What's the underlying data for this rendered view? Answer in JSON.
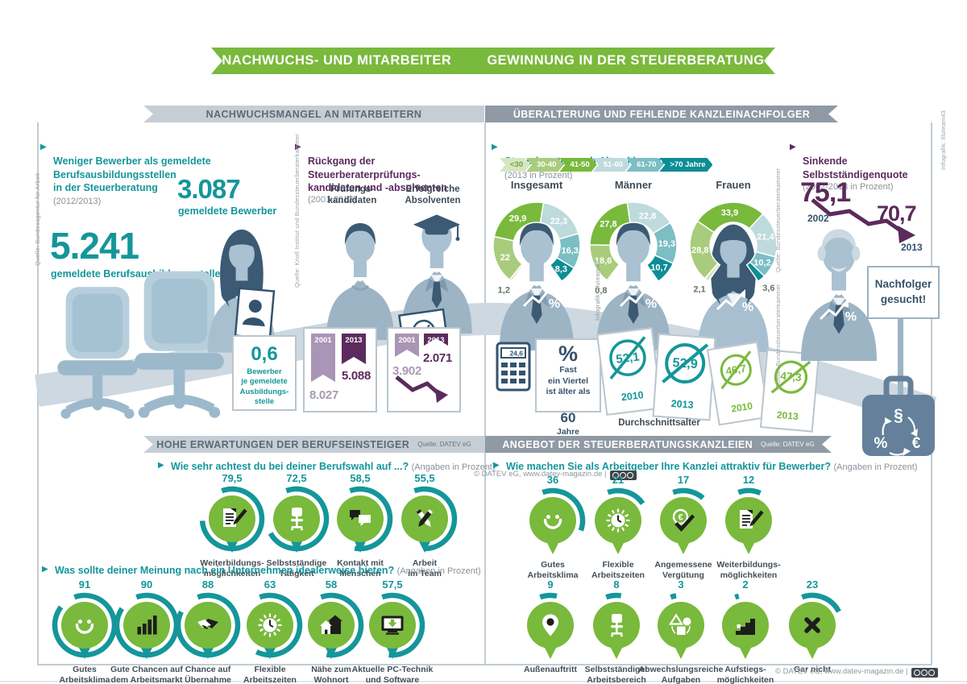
{
  "banner": {
    "left": "NACHWUCHS- UND MITARBEITER",
    "right": "GEWINNUNG IN DER STEUERBERATUNG"
  },
  "top_left": {
    "header": "NACHWUCHSMANGEL AN MITARBEITERN",
    "source": "Quelle: Bundesagentur für Arbeit",
    "title": "Weniger Bewerber als gemeldete Berufsausbildungsstellen\nin der Steuerberatung",
    "title_suffix": "(2012/2013)",
    "applicants_value": "3.087",
    "applicants_label": "gemeldete Bewerber",
    "positions_value": "5.241",
    "positions_label": "gemeldete Berufsausbildungsstellen",
    "ratio_value": "0,6",
    "ratio_label": "Bewerber\nje gemeldete\nAusbildungs-\nstelle",
    "decline_title": "Rückgang der Steuerberaterprüfungs-\nkandidaten und -absolventen",
    "decline_suffix": "(2001-2013)",
    "decline_source": "Quelle: Knoll Institut und Bundessteuerberaterkammer",
    "col1": "Prüfungs-\nkandidaten",
    "col2": "Erfolgreiche\nAbsolventen"
  },
  "top_right": {
    "header": "ÜBERALTERUNG UND FEHLENDE KANZLEINACHFOLGER",
    "age_title": "Steuerberater nach Altersklassen",
    "age_suffix": "(2013 in Prozent)",
    "sources": [
      "Quelle: Bundessteuerberaterkammer",
      "Quelle: Bundessteuerberaterkammer"
    ],
    "calculator_display": "24,6",
    "quarter_pct": "%",
    "quarter_text": "Fast\nein Viertel\nist älter als",
    "quarter_big": "60",
    "quarter_unit": "Jahre",
    "quote_title": "Sinkende Selbstständigenquote",
    "quote_suffix": "(2002-2013 in Prozent)",
    "sign_text": "Nachfolger\ngesucht!",
    "briefcase_symbols": [
      "§",
      "%",
      "€"
    ]
  },
  "bottom_left": {
    "header": "HOHE ERWARTUNGEN DER BERUFSEINSTEIGER",
    "header_source": "Quelle: DATEV eG",
    "q1": "Wie sehr achtest du bei deiner Berufswahl auf ...?",
    "q1_suffix": "(Angaben in Prozent)",
    "q2": "Was sollte deiner Meinung nach ein Unternehmen idealerweise bieten?",
    "q2_suffix": "(Angaben in Prozent)"
  },
  "bottom_right": {
    "header": "ANGEBOT DER STEUERBERATUNGSKANZLEIEN",
    "header_source": "Quelle: DATEV eG",
    "q": "Wie machen Sie als Arbeitgeber Ihre Kanzlei attraktiv für Bewerber?",
    "q_suffix": "(Angaben in Prozent)",
    "watermark": "© DATEV eG, www.datev-magazin.de |"
  },
  "credit": "Infografik: Illuteam43",
  "colors": {
    "green": "#79b93c",
    "teal": "#14969a",
    "purple": "#5b2b5d",
    "purple_light": "#a995b5",
    "navy": "#33536e"
  },
  "chart_data": [
    {
      "id": "pruefungskandidaten",
      "type": "bar",
      "title": "Prüfungskandidaten",
      "categories": [
        "2001",
        "2013"
      ],
      "values": [
        8027,
        5088
      ],
      "labels": [
        "8.027",
        "5.088"
      ]
    },
    {
      "id": "absolventen",
      "type": "bar",
      "title": "Erfolgreiche Absolventen",
      "categories": [
        "2001",
        "2013"
      ],
      "values": [
        3902,
        2071
      ],
      "labels": [
        "3.902",
        "2.071"
      ]
    },
    {
      "id": "alter_insgesamt",
      "type": "pie",
      "title": "Insgesamt",
      "categories": [
        "<30",
        "30-40",
        "41-50",
        "51-60",
        "61-70",
        ">70 Jahre"
      ],
      "values": [
        1.2,
        22,
        29.9,
        22.3,
        16.3,
        8.3
      ],
      "labels": [
        "1,2",
        "22",
        "29,9",
        "22,3",
        "16,3",
        "8,3"
      ],
      "colors": [
        "#d6e7c0",
        "#a8cc7c",
        "#79b93c",
        "#bedadd",
        "#7bbec4",
        "#0d8d95"
      ]
    },
    {
      "id": "alter_maenner",
      "type": "pie",
      "title": "Männer",
      "categories": [
        "<30",
        "30-40",
        "41-50",
        "51-60",
        "61-70",
        ">70 Jahre"
      ],
      "values": [
        0.8,
        18.6,
        27.8,
        22.8,
        19.3,
        10.7
      ],
      "labels": [
        "0,8",
        "18,6",
        "27,8",
        "22,8",
        "19,3",
        "10,7"
      ]
    },
    {
      "id": "alter_frauen",
      "type": "pie",
      "title": "Frauen",
      "categories": [
        "<30",
        "30-40",
        "41-50",
        "51-60",
        "61-70",
        ">70 Jahre"
      ],
      "values": [
        2.1,
        28.8,
        33.9,
        21.4,
        10.2,
        3.6
      ],
      "labels": [
        "2,1",
        "28,8",
        "33,9",
        "21,4",
        "10,2",
        "3,6"
      ]
    },
    {
      "id": "durchschnittsalter",
      "type": "table",
      "label": "Durchschnittsalter",
      "groups": [
        {
          "color": "#14969a",
          "items": [
            {
              "year": "2010",
              "value": "52,1"
            },
            {
              "year": "2013",
              "value": "52,9"
            }
          ]
        },
        {
          "color": "#79b93c",
          "items": [
            {
              "year": "2010",
              "value": "46,7"
            },
            {
              "year": "2013",
              "value": "47,3"
            }
          ]
        }
      ]
    },
    {
      "id": "selbststaendigenquote",
      "type": "line",
      "x": [
        "2002",
        "2013"
      ],
      "values": [
        75.1,
        70.7
      ],
      "labels": [
        "75,1",
        "70,7"
      ]
    },
    {
      "id": "berufswahl",
      "type": "bar",
      "items": [
        {
          "value": 79.5,
          "display": "79,5",
          "label": "Weiterbildungs-\nmöglichkeiten",
          "icon": "document-pen-icon"
        },
        {
          "value": 72.5,
          "display": "72,5",
          "label": "Selbstständige\nTätigkeit",
          "icon": "office-chair-icon"
        },
        {
          "value": 58.5,
          "display": "58,5",
          "label": "Kontakt mit\nMenschen",
          "icon": "speech-bubbles-icon"
        },
        {
          "value": 55.5,
          "display": "55,5",
          "label": "Arbeit\nim Team",
          "icon": "crossed-pencils-icon"
        }
      ]
    },
    {
      "id": "unternehmen_bieten",
      "type": "bar",
      "items": [
        {
          "value": 91,
          "display": "91",
          "label": "Gutes\nArbeitsklima",
          "icon": "smiley-icon"
        },
        {
          "value": 90,
          "display": "90",
          "label": "Gute Chancen auf\ndem Arbeitsmarkt",
          "icon": "bar-chart-icon"
        },
        {
          "value": 88,
          "display": "88",
          "label": "Chance auf\nÜbernahme",
          "icon": "handshake-icon"
        },
        {
          "value": 63,
          "display": "63",
          "label": "Flexible\nArbeitszeiten",
          "icon": "clock-icon"
        },
        {
          "value": 58,
          "display": "58",
          "label": "Nähe zum\nWohnort",
          "icon": "houses-icon"
        },
        {
          "value": 57.5,
          "display": "57,5",
          "label": "Aktuelle PC-Technik\nund Software",
          "icon": "monitor-icon"
        }
      ]
    },
    {
      "id": "kanzlei_attraktiv_1",
      "type": "bar",
      "items": [
        {
          "value": 36,
          "display": "36",
          "label": "Gutes\nArbeitsklima",
          "icon": "smiley-icon"
        },
        {
          "value": 21,
          "display": "21",
          "label": "Flexible\nArbeitszeiten",
          "icon": "clock-icon"
        },
        {
          "value": 17,
          "display": "17",
          "label": "Angemessene\nVergütung",
          "icon": "euro-check-icon"
        },
        {
          "value": 12,
          "display": "12",
          "label": "Weiterbildungs-\nmöglichkeiten",
          "icon": "document-pen-icon"
        }
      ]
    },
    {
      "id": "kanzlei_attraktiv_2",
      "type": "bar",
      "items": [
        {
          "value": 9,
          "display": "9",
          "label": "Außenauftritt",
          "icon": "map-pin-icon"
        },
        {
          "value": 8,
          "display": "8",
          "label": "Selbstständiger\nArbeitsbereich",
          "icon": "office-chair-icon"
        },
        {
          "value": 3,
          "display": "3",
          "label": "Abwechslungsreiche\nAufgaben",
          "icon": "shapes-icon"
        },
        {
          "value": 2,
          "display": "2",
          "label": "Aufstiegs-\nmöglichkeiten",
          "icon": "stairs-icon"
        },
        {
          "value": 23,
          "display": "23",
          "label": "Gar nicht",
          "icon": "cross-icon"
        }
      ]
    }
  ]
}
